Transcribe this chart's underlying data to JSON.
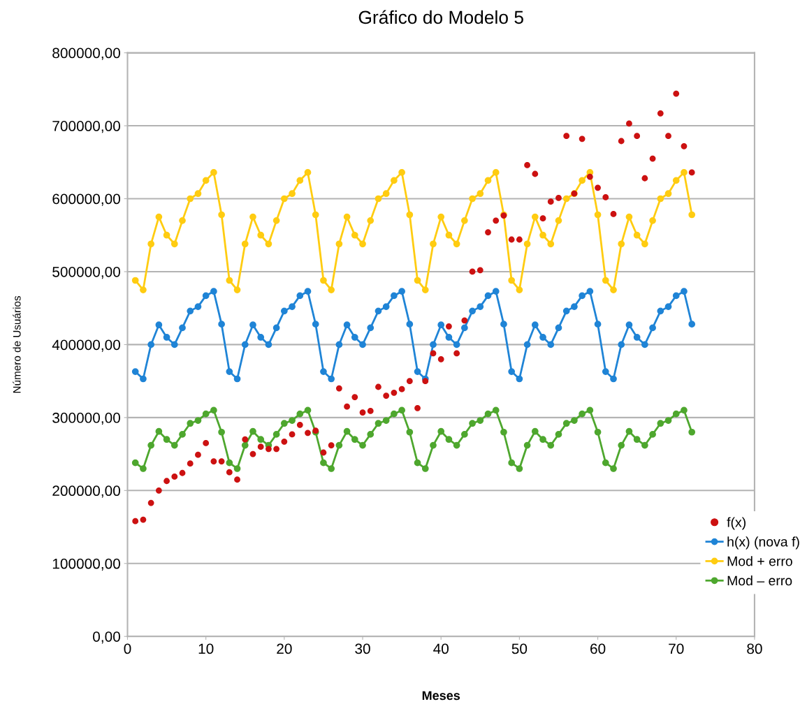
{
  "chart_data": {
    "type": "line",
    "title": "Gráfico do Modelo 5",
    "xlabel": "Meses",
    "ylabel": "Número de Usuários",
    "x": [
      1,
      2,
      3,
      4,
      5,
      6,
      7,
      8,
      9,
      10,
      11,
      12,
      13,
      14,
      15,
      16,
      17,
      18,
      19,
      20,
      21,
      22,
      23,
      24,
      25,
      26,
      27,
      28,
      29,
      30,
      31,
      32,
      33,
      34,
      35,
      36,
      37,
      38,
      39,
      40,
      41,
      42,
      43,
      44,
      45,
      46,
      47,
      48,
      49,
      50,
      51,
      52,
      53,
      54,
      55,
      56,
      57,
      58,
      59,
      60,
      61,
      62,
      63,
      64,
      65,
      66,
      67,
      68,
      69,
      70,
      71,
      72
    ],
    "series": [
      {
        "name": "f(x)",
        "type": "scatter",
        "color": "#cc1111",
        "values": [
          158000,
          160000,
          183000,
          200000,
          213000,
          219000,
          224000,
          237000,
          249000,
          265000,
          240000,
          240000,
          225000,
          215000,
          270000,
          250000,
          260000,
          257000,
          257000,
          267000,
          277000,
          290000,
          279000,
          282000,
          252000,
          262000,
          340000,
          315000,
          328000,
          307000,
          309000,
          342000,
          330000,
          334000,
          339000,
          350000,
          313000,
          350000,
          388000,
          380000,
          425000,
          388000,
          433000,
          500000,
          502000,
          554000,
          570000,
          577000,
          544000,
          544000,
          646000,
          634000,
          573000,
          596000,
          601000,
          686000,
          607000,
          682000,
          630000,
          615000,
          602000,
          579000,
          679000,
          703000,
          686000,
          628000,
          655000,
          717000,
          686000,
          744000,
          672000,
          636000
        ]
      },
      {
        "name": "h(x) (nova f)",
        "color": "#1f84d6",
        "values": [
          363000,
          353000,
          400000,
          427000,
          410000,
          400000,
          423000,
          446000,
          452000,
          467000,
          473000,
          428000,
          363000,
          353000,
          400000,
          427000,
          410000,
          400000,
          423000,
          446000,
          452000,
          467000,
          473000,
          428000,
          363000,
          353000,
          400000,
          427000,
          410000,
          400000,
          423000,
          446000,
          452000,
          467000,
          473000,
          428000,
          363000,
          353000,
          400000,
          427000,
          410000,
          400000,
          423000,
          446000,
          452000,
          467000,
          473000,
          428000,
          363000,
          353000,
          400000,
          427000,
          410000,
          400000,
          423000,
          446000,
          452000,
          467000,
          473000,
          428000,
          363000,
          353000,
          400000,
          427000,
          410000,
          400000,
          423000,
          446000,
          452000,
          467000,
          473000,
          428000
        ]
      },
      {
        "name": "Mod + erro",
        "color": "#ffcc11",
        "values": [
          488000,
          475000,
          538000,
          575000,
          550000,
          538000,
          570000,
          600000,
          607000,
          625000,
          636000,
          578000,
          488000,
          475000,
          538000,
          575000,
          550000,
          538000,
          570000,
          600000,
          607000,
          625000,
          636000,
          578000,
          488000,
          475000,
          538000,
          575000,
          550000,
          538000,
          570000,
          600000,
          607000,
          625000,
          636000,
          578000,
          488000,
          475000,
          538000,
          575000,
          550000,
          538000,
          570000,
          600000,
          607000,
          625000,
          636000,
          578000,
          488000,
          475000,
          538000,
          575000,
          550000,
          538000,
          570000,
          600000,
          607000,
          625000,
          636000,
          578000,
          488000,
          475000,
          538000,
          575000,
          550000,
          538000,
          570000,
          600000,
          607000,
          625000,
          636000,
          578000
        ]
      },
      {
        "name": "Mod – erro",
        "color": "#4ea72e",
        "values": [
          238000,
          230000,
          262000,
          281000,
          270000,
          262000,
          277000,
          292000,
          296000,
          305000,
          310000,
          280000,
          238000,
          230000,
          262000,
          281000,
          270000,
          262000,
          277000,
          292000,
          296000,
          305000,
          310000,
          280000,
          238000,
          230000,
          262000,
          281000,
          270000,
          262000,
          277000,
          292000,
          296000,
          305000,
          310000,
          280000,
          238000,
          230000,
          262000,
          281000,
          270000,
          262000,
          277000,
          292000,
          296000,
          305000,
          310000,
          280000,
          238000,
          230000,
          262000,
          281000,
          270000,
          262000,
          277000,
          292000,
          296000,
          305000,
          310000,
          280000,
          238000,
          230000,
          262000,
          281000,
          270000,
          262000,
          277000,
          292000,
          296000,
          305000,
          310000,
          280000
        ]
      }
    ],
    "xlim": [
      0,
      80
    ],
    "xticks": [
      0,
      10,
      20,
      30,
      40,
      50,
      60,
      70,
      80
    ],
    "ylim": [
      0,
      800000
    ],
    "yticks": [
      {
        "value": 0,
        "label": "0,00"
      },
      {
        "value": 100000,
        "label": "100000,00"
      },
      {
        "value": 200000,
        "label": "200000,00"
      },
      {
        "value": 300000,
        "label": "300000,00"
      },
      {
        "value": 400000,
        "label": "400000,00"
      },
      {
        "value": 500000,
        "label": "500000,00"
      },
      {
        "value": 600000,
        "label": "600000,00"
      },
      {
        "value": 700000,
        "label": "700000,00"
      },
      {
        "value": 800000,
        "label": "800000,00"
      }
    ],
    "grid": "y",
    "legend": "right",
    "marker": "circle"
  }
}
